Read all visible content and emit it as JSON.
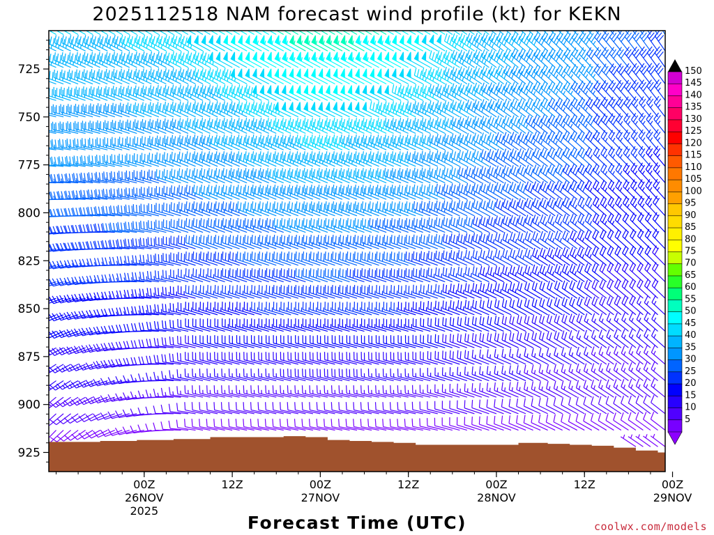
{
  "chart_data": {
    "type": "wind-barb-timeseries",
    "title": "2025112518 NAM forecast wind profile (kt) for KEKN",
    "xlabel": "Forecast Time (UTC)",
    "ylabel": "",
    "y_ticks": [
      "725",
      "750",
      "775",
      "800",
      "825",
      "850",
      "875",
      "900",
      "925"
    ],
    "y_tick_values": [
      725,
      750,
      775,
      800,
      825,
      850,
      875,
      900,
      925
    ],
    "ylim": [
      705,
      935
    ],
    "x_range_hours": [
      -13,
      71
    ],
    "x_ticks": [
      {
        "hour": 0,
        "l1": "00Z",
        "l2": "26NOV",
        "l3": "2025"
      },
      {
        "hour": 12,
        "l1": "12Z",
        "l2": "",
        "l3": ""
      },
      {
        "hour": 24,
        "l1": "00Z",
        "l2": "27NOV",
        "l3": ""
      },
      {
        "hour": 36,
        "l1": "12Z",
        "l2": "",
        "l3": ""
      },
      {
        "hour": 48,
        "l1": "00Z",
        "l2": "28NOV",
        "l3": ""
      },
      {
        "hour": 60,
        "l1": "12Z",
        "l2": "",
        "l3": ""
      },
      {
        "hour": 72,
        "l1": "00Z",
        "l2": "29NOV",
        "l3": ""
      }
    ],
    "colorbar": {
      "labels": [
        "150",
        "145",
        "140",
        "135",
        "130",
        "125",
        "120",
        "115",
        "110",
        "105",
        "100",
        "95",
        "90",
        "85",
        "80",
        "75",
        "70",
        "65",
        "60",
        "55",
        "50",
        "45",
        "40",
        "35",
        "30",
        "25",
        "20",
        "15",
        "10",
        "5"
      ],
      "colors": [
        "#d200d2",
        "#ff00c8",
        "#ff0096",
        "#ff0064",
        "#ff0032",
        "#ff0000",
        "#ff3200",
        "#ff5a00",
        "#ff7800",
        "#ff8c00",
        "#ffa000",
        "#ffc800",
        "#ffdc00",
        "#fff000",
        "#ffff00",
        "#c8ff00",
        "#64ff00",
        "#28ff28",
        "#00ff78",
        "#00ffbe",
        "#00ffff",
        "#00dcff",
        "#00b4ff",
        "#0096ff",
        "#0064ff",
        "#0032ff",
        "#0000ff",
        "#2800ff",
        "#5000ff",
        "#7800ff"
      ],
      "top_triangle_color": "#000000",
      "bottom_triangle_color": "#8c00ff"
    },
    "terrain": {
      "color": "#a0522d",
      "pressure_hpa": [
        {
          "hour": -13,
          "p": 919.5
        },
        {
          "hour": -9,
          "p": 919.5
        },
        {
          "hour": -6,
          "p": 919
        },
        {
          "hour": -1,
          "p": 918.5
        },
        {
          "hour": 4,
          "p": 918
        },
        {
          "hour": 9,
          "p": 917
        },
        {
          "hour": 13,
          "p": 917
        },
        {
          "hour": 16,
          "p": 917
        },
        {
          "hour": 19,
          "p": 916.5
        },
        {
          "hour": 22,
          "p": 917
        },
        {
          "hour": 25,
          "p": 918.5
        },
        {
          "hour": 28,
          "p": 919
        },
        {
          "hour": 31,
          "p": 919.5
        },
        {
          "hour": 34,
          "p": 920
        },
        {
          "hour": 37,
          "p": 921
        },
        {
          "hour": 40,
          "p": 921
        },
        {
          "hour": 44,
          "p": 921
        },
        {
          "hour": 47,
          "p": 921
        },
        {
          "hour": 51,
          "p": 920
        },
        {
          "hour": 55,
          "p": 920.5
        },
        {
          "hour": 58,
          "p": 921
        },
        {
          "hour": 61,
          "p": 921.5
        },
        {
          "hour": 64,
          "p": 922.5
        },
        {
          "hour": 67,
          "p": 924
        },
        {
          "hour": 70,
          "p": 925
        },
        {
          "hour": 71,
          "p": 925.5
        }
      ]
    },
    "wind_fields": {
      "level_range_hpa": [
        707,
        925
      ],
      "time_range_hours": [
        -12,
        71
      ],
      "time_step_hours": 1,
      "level_step_hpa": 8.6,
      "description": "NAM hourly wind barbs on pressure levels; speeds ~5-55 kt, westerly to northwesterly, strongest aloft 18Z-36Z"
    }
  },
  "credit": "coolwx.com/models"
}
